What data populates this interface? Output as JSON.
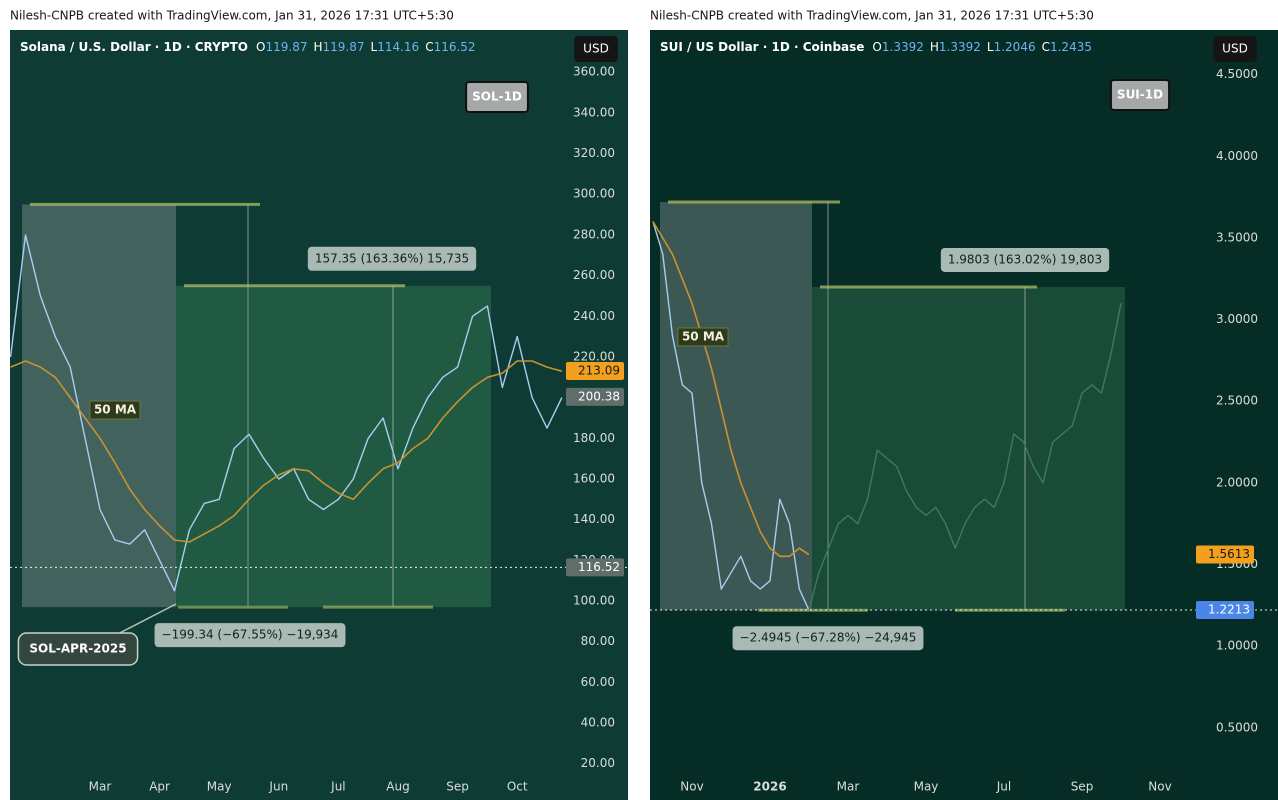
{
  "chart_data": [
    {
      "type": "line",
      "header": "Nilesh-CNPB created with TradingView.com, Jan 31, 2026 17:31 UTC+5:30",
      "legend": "Solana / U.S. Dollar · 1D · CRYPTO",
      "ohlc": [
        {
          "label": "O",
          "value": 119.87
        },
        {
          "label": "H",
          "value": 119.87
        },
        {
          "label": "L",
          "value": 114.16
        },
        {
          "label": "C",
          "value": 116.52
        }
      ],
      "currency": "USD",
      "title": "SOL-1D",
      "note": "SOL-APR-2025",
      "categories": [
        null,
        null,
        null,
        null,
        null,
        null,
        "Mar",
        null,
        null,
        null,
        "Apr",
        null,
        null,
        null,
        "May",
        null,
        null,
        null,
        "Jun",
        null,
        null,
        null,
        "Jul",
        null,
        null,
        null,
        "Aug",
        null,
        null,
        null,
        "Sep",
        null,
        null,
        null,
        "Oct",
        null,
        null,
        null
      ],
      "series": [
        {
          "color": "#a9cdf0",
          "values": [
            220,
            280,
            250,
            230,
            215,
            180,
            145,
            130,
            128,
            135,
            120,
            105,
            135,
            148,
            150,
            175,
            182,
            170,
            160,
            165,
            150,
            145,
            150,
            160,
            180,
            190,
            165,
            185,
            200,
            210,
            215,
            240,
            245,
            205,
            230,
            200,
            185,
            200
          ]
        },
        {
          "name": "50 MA",
          "color": "#c8922e",
          "values": [
            215,
            218,
            215,
            210,
            200,
            190,
            180,
            168,
            155,
            145,
            137,
            130,
            129,
            133,
            137,
            142,
            150,
            157,
            162,
            165,
            164,
            158,
            153,
            150,
            158,
            165,
            168,
            175,
            180,
            190,
            198,
            205,
            210,
            212,
            218,
            218,
            215,
            213
          ]
        }
      ],
      "ranges": [
        {
          "label": "−199.34 (−67.55%) −19,934",
          "high": 295,
          "low": 97,
          "color": "rgba(200,205,205,0.28)"
        },
        {
          "label": "157.35 (163.36%) 15,735",
          "high": 255,
          "low": 97,
          "color": "rgba(70,150,95,0.35)"
        }
      ],
      "price_tags": [
        {
          "value": 213.09,
          "color": "#f2a01e"
        },
        {
          "value": 200.38,
          "color": "#5f6d6b"
        },
        {
          "value": 116.52,
          "color": "#5f6d6b",
          "line": true
        }
      ],
      "ylim": [
        12,
        366
      ],
      "yticks": [
        {
          "value": 20,
          "label": "20.00"
        },
        {
          "value": 40,
          "label": "40.00"
        },
        {
          "value": 60,
          "label": "60.00"
        },
        {
          "value": 80,
          "label": "80.00"
        },
        {
          "value": 100,
          "label": "100.00"
        },
        {
          "value": 120,
          "label": "120.00"
        },
        {
          "value": 140,
          "label": "140.00"
        },
        {
          "value": 160,
          "label": "160.00"
        },
        {
          "value": 180,
          "label": "180.00"
        },
        {
          "value": 200,
          "label": "200.00"
        },
        {
          "value": 220,
          "label": "220.00"
        },
        {
          "value": 240,
          "label": "240.00"
        },
        {
          "value": 260,
          "label": "260.00"
        },
        {
          "value": 280,
          "label": "280.00"
        },
        {
          "value": 300,
          "label": "300.00"
        },
        {
          "value": 320,
          "label": "320.00"
        },
        {
          "value": 340,
          "label": "340.00"
        },
        {
          "value": 360,
          "label": "360.00"
        }
      ]
    },
    {
      "type": "line",
      "header": "Nilesh-CNPB created with TradingView.com, Jan 31, 2026 17:31 UTC+5:30",
      "legend": "SUI / US Dollar · 1D · Coinbase",
      "ohlc": [
        {
          "label": "O",
          "value": 1.3392
        },
        {
          "label": "H",
          "value": 1.3392
        },
        {
          "label": "L",
          "value": 1.2046
        },
        {
          "label": "C",
          "value": 1.2435
        }
      ],
      "currency": "USD",
      "title": "SUI-1D",
      "categories": [
        null,
        null,
        null,
        null,
        "Nov",
        null,
        null,
        null,
        null,
        null,
        null,
        null,
        "2026",
        null,
        null,
        null,
        null,
        null,
        null,
        null,
        "Mar",
        null,
        null,
        null,
        null,
        null,
        null,
        null,
        "May",
        null,
        null,
        null,
        null,
        null,
        null,
        null,
        "Jul",
        null,
        null,
        null,
        null,
        null,
        null,
        null,
        "Sep",
        null,
        null,
        null,
        null,
        null,
        null,
        null,
        "Nov"
      ],
      "series": [
        {
          "color": "#a9cdf0",
          "values": [
            3.6,
            3.4,
            2.9,
            2.6,
            2.55,
            2.0,
            1.75,
            1.35,
            1.45,
            1.55,
            1.4,
            1.35,
            1.4,
            1.9,
            1.75,
            1.35,
            1.22,
            null,
            null,
            null,
            null,
            null,
            null,
            null,
            null,
            null,
            null,
            null,
            null,
            null,
            null,
            null,
            null,
            null,
            null,
            null,
            null,
            null,
            null,
            null,
            null,
            null,
            null,
            null,
            null,
            null,
            null,
            null,
            null,
            null,
            null,
            null,
            null
          ]
        },
        {
          "name": "50 MA",
          "color": "#c8922e",
          "values": [
            3.6,
            3.5,
            3.4,
            3.25,
            3.1,
            2.9,
            2.7,
            2.45,
            2.2,
            2.0,
            1.85,
            1.7,
            1.6,
            1.55,
            1.55,
            1.6,
            1.56,
            null,
            null,
            null,
            null,
            null,
            null,
            null,
            null,
            null,
            null,
            null,
            null,
            null,
            null,
            null,
            null,
            null,
            null,
            null,
            null,
            null,
            null,
            null,
            null,
            null,
            null,
            null,
            null,
            null,
            null,
            null,
            null,
            null,
            null,
            null,
            null
          ]
        },
        {
          "color": "#3f7a5c",
          "values": [
            null,
            null,
            null,
            null,
            null,
            null,
            null,
            null,
            null,
            null,
            null,
            null,
            null,
            null,
            null,
            null,
            1.22,
            1.45,
            1.6,
            1.75,
            1.8,
            1.75,
            1.9,
            2.2,
            2.15,
            2.1,
            1.95,
            1.85,
            1.8,
            1.85,
            1.75,
            1.6,
            1.75,
            1.85,
            1.9,
            1.85,
            2.0,
            2.3,
            2.25,
            2.1,
            2.0,
            2.25,
            2.3,
            2.35,
            2.55,
            2.6,
            2.55,
            2.8,
            3.1,
            null,
            null,
            null,
            null
          ]
        }
      ],
      "ranges": [
        {
          "label": "−2.4945 (−67.28%) −24,945",
          "high": 3.72,
          "low": 1.22,
          "color": "rgba(200,205,205,0.28)"
        },
        {
          "label": "1.9803 (163.02%) 19,803",
          "high": 3.2,
          "low": 1.22,
          "color": "rgba(70,150,95,0.3)"
        }
      ],
      "price_tags": [
        {
          "value": 1.5613,
          "color": "#f2a01e"
        },
        {
          "value": 1.2213,
          "color": "#4a86e8",
          "line": true
        }
      ],
      "ylim": [
        0.18,
        4.59
      ],
      "yticks": [
        {
          "value": 0.5,
          "label": "0.5000"
        },
        {
          "value": 1,
          "label": "1.0000"
        },
        {
          "value": 1.5,
          "label": "1.5000"
        },
        {
          "value": 2,
          "label": "2.0000"
        },
        {
          "value": 2.5,
          "label": "2.5000"
        },
        {
          "value": 3,
          "label": "3.0000"
        },
        {
          "value": 3.5,
          "label": "3.5000"
        },
        {
          "value": 4,
          "label": "4.0000"
        },
        {
          "value": 4.5,
          "label": "4.5000"
        }
      ]
    }
  ]
}
